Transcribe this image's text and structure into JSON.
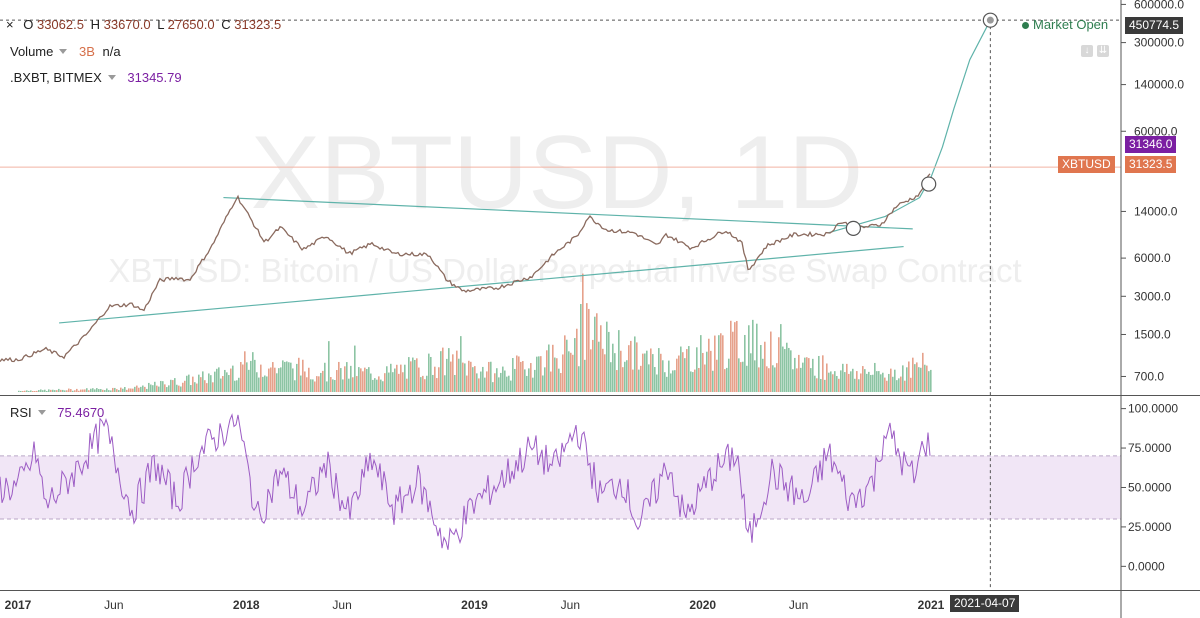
{
  "header": {
    "o_label": "O",
    "o_value": "33062.5",
    "h_label": "H",
    "h_value": "33670.0",
    "l_label": "L",
    "l_value": "27650.0",
    "c_label": "C",
    "c_value": "31323.5"
  },
  "volume_legend": {
    "label": "Volume",
    "value": "3B",
    "extra": "n/a"
  },
  "index_legend": {
    "label": ".BXBT, BITMEX",
    "value": "31345.79"
  },
  "rsi_legend": {
    "label": "RSI",
    "value": "75.4670"
  },
  "market_status": "Market Open",
  "watermark": {
    "big": "XBTUSD, 1D",
    "sub": "XBTUSD: Bitcoin / US Dollar Perpetual Inverse Swap Contract"
  },
  "price_tags": {
    "target": "450774.5",
    "index": "31346.0",
    "symbol": "XBTUSD",
    "last": "31323.5",
    "crosshair_date": "2021-04-07"
  },
  "icons": [
    "close-icon",
    "chevron-down-icon",
    "arrow-down-icon",
    "arrow-double-down-icon"
  ],
  "colors": {
    "up": "#6fb58c",
    "down": "#e08a6e",
    "trend": "#5fb3aa",
    "rsi": "#9c5cc4",
    "rsi_band": "#f1e6f6",
    "index_tag": "#7b1fa2",
    "last_tag": "#e0764f",
    "last_line": "#f2b3a3"
  },
  "chart_data": [
    {
      "type": "candlestick",
      "title": "XBTUSD, 1D",
      "yscale": "log",
      "ylim": [
        500,
        650000
      ],
      "x_ticks": [
        "2017",
        "Jun",
        "2018",
        "Jun",
        "2019",
        "Jun",
        "2020",
        "Jun",
        "2021"
      ],
      "y_ticks": [
        "600000.0",
        "300000.0",
        "140000.0",
        "60000.0",
        "14000.0",
        "6000.0",
        "3000.0",
        "1500.0",
        "700.0"
      ],
      "price_path": [
        {
          "x": 2017.0,
          "y": 950
        },
        {
          "x": 2017.12,
          "y": 1150
        },
        {
          "x": 2017.2,
          "y": 1000
        },
        {
          "x": 2017.3,
          "y": 1500
        },
        {
          "x": 2017.4,
          "y": 2500
        },
        {
          "x": 2017.5,
          "y": 2600
        },
        {
          "x": 2017.55,
          "y": 2300
        },
        {
          "x": 2017.62,
          "y": 4000
        },
        {
          "x": 2017.7,
          "y": 4200
        },
        {
          "x": 2017.75,
          "y": 4000
        },
        {
          "x": 2017.85,
          "y": 7500
        },
        {
          "x": 2017.96,
          "y": 18500
        },
        {
          "x": 2018.0,
          "y": 14000
        },
        {
          "x": 2018.08,
          "y": 8000
        },
        {
          "x": 2018.15,
          "y": 10500
        },
        {
          "x": 2018.25,
          "y": 7000
        },
        {
          "x": 2018.35,
          "y": 9000
        },
        {
          "x": 2018.45,
          "y": 6500
        },
        {
          "x": 2018.55,
          "y": 7800
        },
        {
          "x": 2018.65,
          "y": 6500
        },
        {
          "x": 2018.8,
          "y": 6400
        },
        {
          "x": 2018.88,
          "y": 4000
        },
        {
          "x": 2018.95,
          "y": 3300
        },
        {
          "x": 2019.1,
          "y": 3500
        },
        {
          "x": 2019.25,
          "y": 4300
        },
        {
          "x": 2019.35,
          "y": 6500
        },
        {
          "x": 2019.45,
          "y": 9000
        },
        {
          "x": 2019.5,
          "y": 12800
        },
        {
          "x": 2019.58,
          "y": 10000
        },
        {
          "x": 2019.7,
          "y": 9500
        },
        {
          "x": 2019.8,
          "y": 7500
        },
        {
          "x": 2019.84,
          "y": 9200
        },
        {
          "x": 2019.95,
          "y": 7200
        },
        {
          "x": 2020.1,
          "y": 10000
        },
        {
          "x": 2020.17,
          "y": 8000
        },
        {
          "x": 2020.2,
          "y": 4800
        },
        {
          "x": 2020.28,
          "y": 7500
        },
        {
          "x": 2020.4,
          "y": 9200
        },
        {
          "x": 2020.55,
          "y": 9300
        },
        {
          "x": 2020.6,
          "y": 11500
        },
        {
          "x": 2020.7,
          "y": 10500
        },
        {
          "x": 2020.78,
          "y": 11000
        },
        {
          "x": 2020.85,
          "y": 15500
        },
        {
          "x": 2020.95,
          "y": 19000
        },
        {
          "x": 2021.0,
          "y": 29000
        },
        {
          "x": 2021.01,
          "y": 31323.5
        }
      ],
      "projection_curve": [
        {
          "x": 2020.55,
          "y": 9500
        },
        {
          "x": 2020.8,
          "y": 12800
        },
        {
          "x": 2020.95,
          "y": 18000
        },
        {
          "x": 2021.0,
          "y": 26000
        },
        {
          "x": 2021.05,
          "y": 45000
        },
        {
          "x": 2021.1,
          "y": 90000
        },
        {
          "x": 2021.17,
          "y": 220000
        },
        {
          "x": 2021.26,
          "y": 450774.5
        }
      ],
      "trendlines": [
        {
          "name": "upper",
          "from": {
            "x": 2017.9,
            "y": 18000
          },
          "to": {
            "x": 2020.92,
            "y": 10200
          }
        },
        {
          "name": "lower",
          "from": {
            "x": 2017.18,
            "y": 1850
          },
          "to": {
            "x": 2020.88,
            "y": 7400
          }
        }
      ],
      "markers": [
        {
          "x": 2020.66,
          "y": 10300
        },
        {
          "x": 2020.99,
          "y": 23000
        },
        {
          "x": 2021.26,
          "y": 450774.5
        }
      ],
      "last_price": 31323.5,
      "index_price": 31346.0,
      "target_price": 450774.5,
      "target_date": "2021-04-07"
    },
    {
      "type": "bar",
      "title": "Volume",
      "series": [
        {
          "name": "Volume",
          "envelope": [
            {
              "x": 2017.0,
              "v": 0.02
            },
            {
              "x": 2017.5,
              "v": 0.06
            },
            {
              "x": 2017.85,
              "v": 0.25
            },
            {
              "x": 2018.0,
              "v": 0.45
            },
            {
              "x": 2018.3,
              "v": 0.35
            },
            {
              "x": 2018.6,
              "v": 0.3
            },
            {
              "x": 2018.88,
              "v": 0.5
            },
            {
              "x": 2019.1,
              "v": 0.3
            },
            {
              "x": 2019.45,
              "v": 0.7
            },
            {
              "x": 2019.47,
              "v": 1.0
            },
            {
              "x": 2019.6,
              "v": 0.75
            },
            {
              "x": 2019.8,
              "v": 0.45
            },
            {
              "x": 2020.2,
              "v": 0.85
            },
            {
              "x": 2020.35,
              "v": 0.55
            },
            {
              "x": 2020.6,
              "v": 0.35
            },
            {
              "x": 2020.8,
              "v": 0.3
            },
            {
              "x": 2021.0,
              "v": 0.45
            }
          ]
        }
      ]
    },
    {
      "type": "line",
      "title": "RSI",
      "ylim": [
        -15,
        108
      ],
      "y_ticks": [
        "100.0000",
        "75.0000",
        "50.0000",
        "25.0000",
        "0.0000"
      ],
      "band": [
        30,
        70
      ],
      "series": [
        {
          "name": "RSI",
          "values": [
            {
              "x": 2017.0,
              "y": 50
            },
            {
              "x": 2017.08,
              "y": 72
            },
            {
              "x": 2017.12,
              "y": 38
            },
            {
              "x": 2017.25,
              "y": 60
            },
            {
              "x": 2017.38,
              "y": 88
            },
            {
              "x": 2017.5,
              "y": 35
            },
            {
              "x": 2017.6,
              "y": 65
            },
            {
              "x": 2017.7,
              "y": 40
            },
            {
              "x": 2017.78,
              "y": 70
            },
            {
              "x": 2017.96,
              "y": 94
            },
            {
              "x": 2018.05,
              "y": 30
            },
            {
              "x": 2018.15,
              "y": 60
            },
            {
              "x": 2018.25,
              "y": 35
            },
            {
              "x": 2018.35,
              "y": 65
            },
            {
              "x": 2018.45,
              "y": 32
            },
            {
              "x": 2018.55,
              "y": 68
            },
            {
              "x": 2018.65,
              "y": 35
            },
            {
              "x": 2018.75,
              "y": 55
            },
            {
              "x": 2018.88,
              "y": 12
            },
            {
              "x": 2019.0,
              "y": 40
            },
            {
              "x": 2019.12,
              "y": 55
            },
            {
              "x": 2019.25,
              "y": 75
            },
            {
              "x": 2019.35,
              "y": 62
            },
            {
              "x": 2019.45,
              "y": 88
            },
            {
              "x": 2019.55,
              "y": 45
            },
            {
              "x": 2019.65,
              "y": 55
            },
            {
              "x": 2019.72,
              "y": 25
            },
            {
              "x": 2019.85,
              "y": 65
            },
            {
              "x": 2019.92,
              "y": 30
            },
            {
              "x": 2020.05,
              "y": 60
            },
            {
              "x": 2020.15,
              "y": 72
            },
            {
              "x": 2020.2,
              "y": 15
            },
            {
              "x": 2020.3,
              "y": 60
            },
            {
              "x": 2020.45,
              "y": 40
            },
            {
              "x": 2020.55,
              "y": 72
            },
            {
              "x": 2020.65,
              "y": 40
            },
            {
              "x": 2020.75,
              "y": 55
            },
            {
              "x": 2020.8,
              "y": 88
            },
            {
              "x": 2020.88,
              "y": 65
            },
            {
              "x": 2020.93,
              "y": 55
            },
            {
              "x": 2020.97,
              "y": 80
            },
            {
              "x": 2021.01,
              "y": 75.467
            }
          ]
        }
      ],
      "last_value": 75.467
    }
  ]
}
